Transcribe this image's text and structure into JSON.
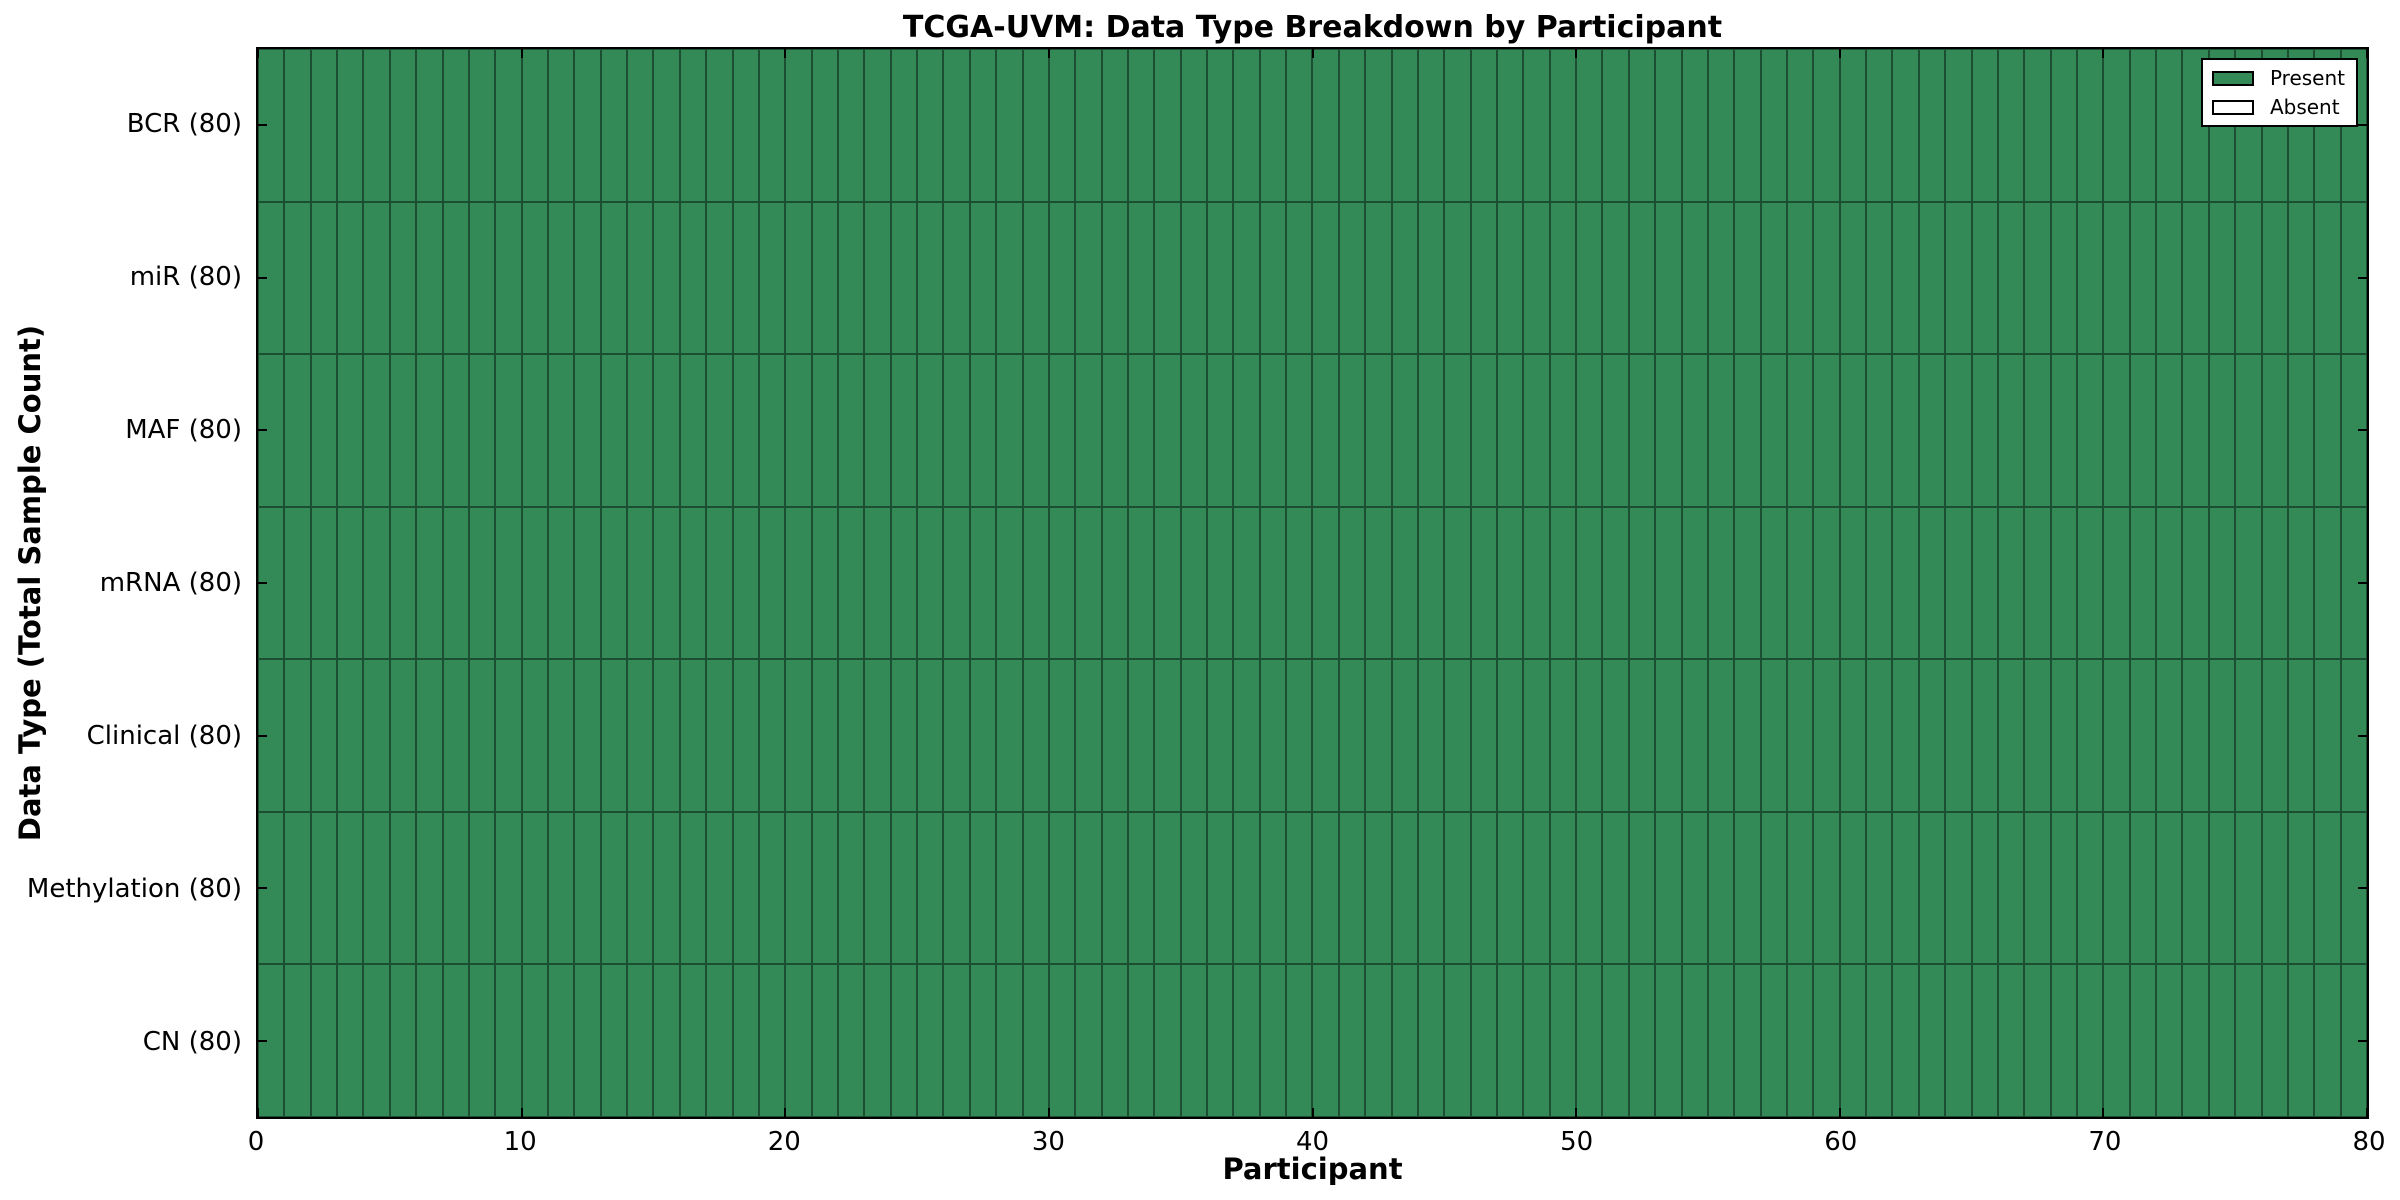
{
  "chart_data": {
    "type": "heatmap",
    "title": "TCGA-UVM: Data Type Breakdown by Participant",
    "xlabel": "Participant",
    "ylabel": "Data Type (Total Sample Count)",
    "x_range": [
      0,
      80
    ],
    "x_ticks": [
      "0",
      "10",
      "20",
      "30",
      "40",
      "50",
      "60",
      "70",
      "80"
    ],
    "n_participants": 80,
    "categories": [
      "BCR (80)",
      "miR (80)",
      "MAF (80)",
      "mRNA (80)",
      "Clinical (80)",
      "Methylation (80)",
      "CN (80)"
    ],
    "rows": [
      {
        "label": "BCR (80)",
        "data_type": "BCR",
        "total_samples": 80,
        "present": 80,
        "absent": 0
      },
      {
        "label": "miR (80)",
        "data_type": "miR",
        "total_samples": 80,
        "present": 80,
        "absent": 0
      },
      {
        "label": "MAF (80)",
        "data_type": "MAF",
        "total_samples": 80,
        "present": 80,
        "absent": 0
      },
      {
        "label": "mRNA (80)",
        "data_type": "mRNA",
        "total_samples": 80,
        "present": 80,
        "absent": 0
      },
      {
        "label": "Clinical (80)",
        "data_type": "Clinical",
        "total_samples": 80,
        "present": 80,
        "absent": 0
      },
      {
        "label": "Methylation (80)",
        "data_type": "Methylation",
        "total_samples": 80,
        "present": 80,
        "absent": 0
      },
      {
        "label": "CN (80)",
        "data_type": "CN",
        "total_samples": 80,
        "present": 80,
        "absent": 0
      }
    ],
    "legend": {
      "position": "upper-right",
      "entries": [
        {
          "label": "Present",
          "color": "#338a57"
        },
        {
          "label": "Absent",
          "color": "#ffffff"
        }
      ]
    },
    "colors": {
      "present_fill": "#338a57",
      "absent_fill": "#ffffff",
      "cell_edge": "#1c4e31",
      "axis_frame": "#000000",
      "text": "#000000",
      "background": "#ffffff"
    },
    "layout_hints": {
      "grid": "cell-borders",
      "tick_direction": "in",
      "ticks_on_all_sides": true
    }
  }
}
